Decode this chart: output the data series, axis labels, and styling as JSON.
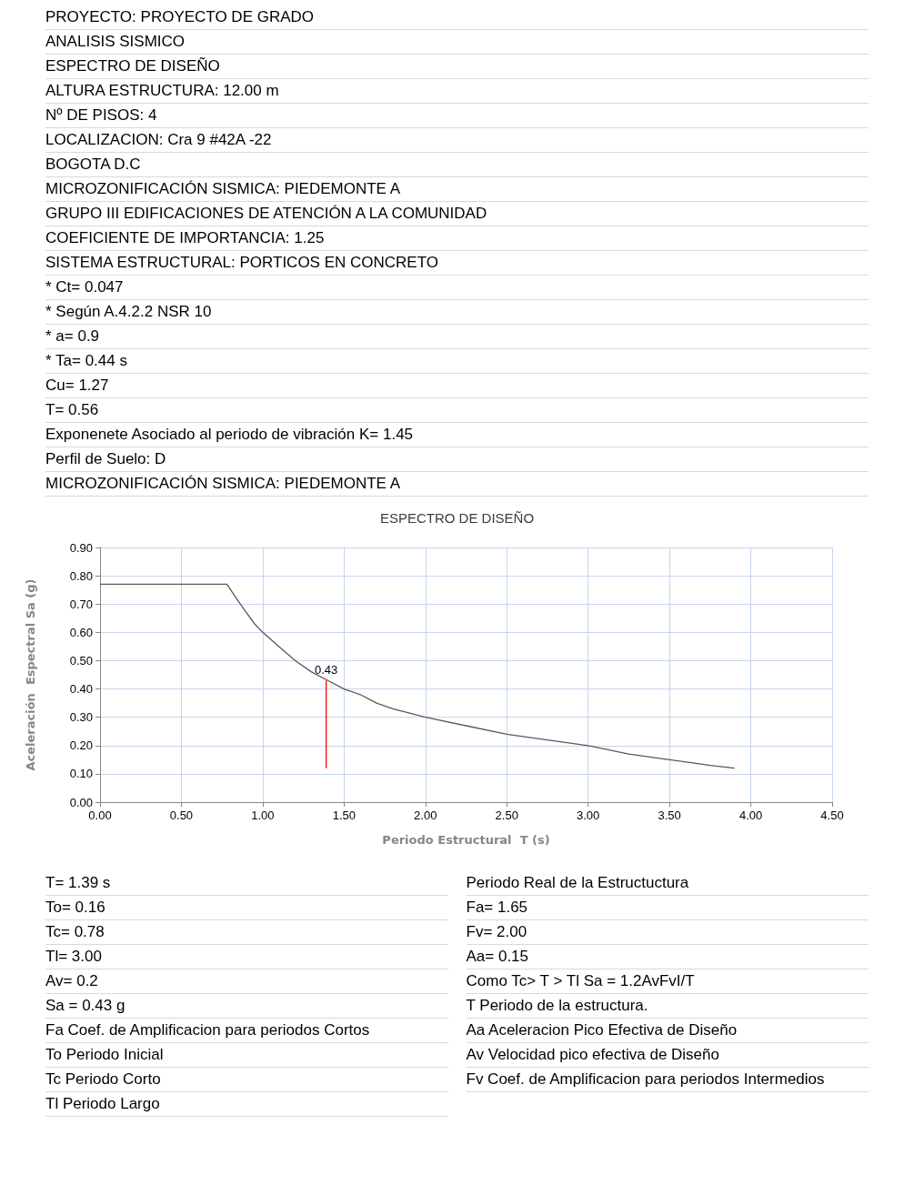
{
  "chart_data": [
    {
      "type": "other",
      "annotations": [
        "PROYECTO: PROYECTO DE GRADO",
        "ANALISIS SISMICO",
        "ESPECTRO DE DISEÑO",
        "ALTURA ESTRUCTURA: 12.00 m",
        "Nº DE PISOS: 4",
        "LOCALIZACION: Cra 9 #42A -22",
        "BOGOTA D.C",
        "MICROZONIFICACIÓN SISMICA: PIEDEMONTE A",
        "GRUPO III EDIFICACIONES DE ATENCIÓN A LA COMUNIDAD",
        "COEFICIENTE DE IMPORTANCIA: 1.25",
        "SISTEMA ESTRUCTURAL: PORTICOS EN CONCRETO",
        "* Ct= 0.047",
        "* Según A.4.2.2 NSR 10",
        "* a= 0.9",
        "* Ta= 0.44 s",
        "Cu= 1.27",
        "T= 0.56",
        "Exponenete Asociado al periodo de vibración K= 1.45",
        "Perfil de Suelo: D",
        "MICROZONIFICACIÓN SISMICA: PIEDEMONTE A"
      ]
    },
    {
      "type": "line",
      "title": "ESPECTRO DE DISEÑO",
      "xlabel": "Periodo Estructural  T (s)",
      "ylabel": "Aceleración  Espectral Sa (g)",
      "xlim": [
        0,
        4.5
      ],
      "xticks": [
        {
          "value": 0,
          "label": "0.00"
        },
        {
          "value": 0.5,
          "label": "0.50"
        },
        {
          "value": 1,
          "label": "1.00"
        },
        {
          "value": 1.5,
          "label": "1.50"
        },
        {
          "value": 2,
          "label": "2.00"
        },
        {
          "value": 2.5,
          "label": "2.50"
        },
        {
          "value": 3,
          "label": "3.00"
        },
        {
          "value": 3.5,
          "label": "3.50"
        },
        {
          "value": 4,
          "label": "4.00"
        },
        {
          "value": 4.5,
          "label": "4.50"
        }
      ],
      "ylim": [
        0,
        0.9
      ],
      "yticks": [
        {
          "value": 0,
          "label": "0.00"
        },
        {
          "value": 0.1,
          "label": "0.10"
        },
        {
          "value": 0.2,
          "label": "0.20"
        },
        {
          "value": 0.3,
          "label": "0.30"
        },
        {
          "value": 0.4,
          "label": "0.40"
        },
        {
          "value": 0.5,
          "label": "0.50"
        },
        {
          "value": 0.6,
          "label": "0.60"
        },
        {
          "value": 0.7,
          "label": "0.70"
        },
        {
          "value": 0.8,
          "label": "0.80"
        },
        {
          "value": 0.9,
          "label": "0.90"
        }
      ],
      "grid": true,
      "marker": "none",
      "line_style": "solid",
      "series": [
        {
          "color": "#595959",
          "x": [
            0,
            0.78,
            0.85,
            0.9,
            0.95,
            1.0,
            1.1,
            1.2,
            1.3,
            1.4,
            1.5,
            1.6,
            1.7,
            1.8,
            2.0,
            2.25,
            2.5,
            2.75,
            3.0,
            3.25,
            3.5,
            3.75,
            3.9
          ],
          "values": [
            0.77,
            0.77,
            0.71,
            0.67,
            0.63,
            0.6,
            0.55,
            0.5,
            0.46,
            0.43,
            0.4,
            0.38,
            0.35,
            0.33,
            0.3,
            0.27,
            0.24,
            0.22,
            0.2,
            0.17,
            0.15,
            0.13,
            0.12
          ]
        },
        {
          "color": "#ff0000",
          "x": [
            1.39,
            1.39
          ],
          "values": [
            0.12,
            0.43
          ],
          "value_labels": [
            null,
            "0.43"
          ]
        }
      ]
    },
    {
      "type": "other",
      "annotations": [
        "T= 1.39 s",
        "Periodo Real de la Estructuctura",
        "To= 0.16",
        "Fa= 1.65",
        "Tc= 0.78",
        "Fv= 2.00",
        "Tl= 3.00",
        "Aa= 0.15",
        "Av= 0.2",
        "Como Tc> T > Tl  Sa = 1.2AvFvI/T",
        "Sa = 0.43 g",
        "T Periodo de la estructura.",
        "Fa Coef. de Amplificacion para periodos Cortos",
        "Aa Aceleracion Pico Efectiva de Diseño",
        "To Periodo Inicial",
        "Av Velocidad pico efectiva de Diseño",
        "Tc Periodo Corto",
        "Fv Coef. de Amplificacion para periodos Intermedios",
        "Tl Periodo Largo"
      ]
    }
  ]
}
